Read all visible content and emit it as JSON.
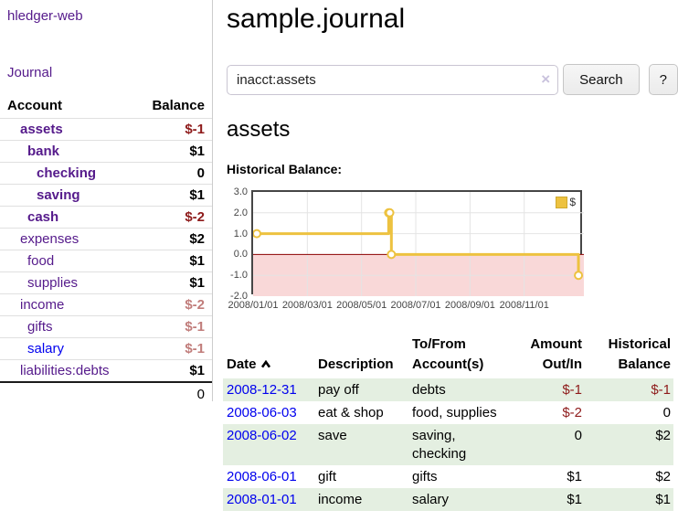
{
  "app": {
    "title": "hledger-web"
  },
  "sidebar": {
    "journal_label": "Journal",
    "headers": {
      "account": "Account",
      "balance": "Balance"
    },
    "accounts": [
      {
        "name": "assets",
        "balance": "$-1"
      },
      {
        "name": "bank",
        "balance": "$1"
      },
      {
        "name": "checking",
        "balance": "0"
      },
      {
        "name": "saving",
        "balance": "$1"
      },
      {
        "name": "cash",
        "balance": "$-2"
      },
      {
        "name": "expenses",
        "balance": "$2"
      },
      {
        "name": "food",
        "balance": "$1"
      },
      {
        "name": "supplies",
        "balance": "$1"
      },
      {
        "name": "income",
        "balance": "$-2"
      },
      {
        "name": "gifts",
        "balance": "$-1"
      },
      {
        "name": "salary",
        "balance": "$-1"
      },
      {
        "name": "liabilities:debts",
        "balance": "$1"
      }
    ],
    "total": "0"
  },
  "main": {
    "title": "sample.journal",
    "search": {
      "value": "inacct:assets",
      "clear_icon": "×",
      "button_label": "Search",
      "help_label": "?"
    },
    "account_heading": "assets",
    "chart_label": "Historical Balance:"
  },
  "chart_data": {
    "type": "line",
    "step": true,
    "title": "Historical Balance:",
    "legend": [
      {
        "label": "$",
        "color": "#edc240"
      }
    ],
    "series_color": "#edc240",
    "negative_region_color": "#f9d8d8",
    "zero_line_color": "#8b0000",
    "grid_color": "#e4e4e4",
    "ylim": [
      -2,
      3
    ],
    "y_ticks": [
      "3.0",
      "2.0",
      "1.0",
      "0.0",
      "-1.0",
      "-2.0"
    ],
    "x_range_months": [
      0,
      12.2
    ],
    "x_tick_months": [
      0,
      2,
      4,
      6,
      8,
      10
    ],
    "x_tick_labels": [
      "2008/01/01",
      "2008/03/01",
      "2008/05/01",
      "2008/07/01",
      "2008/09/01",
      "2008/11/01"
    ],
    "points": [
      {
        "date": "2008/01/01",
        "x": 0,
        "y": 1
      },
      {
        "date": "2008/06/01",
        "x": 5,
        "y": 2
      },
      {
        "date": "2008/06/02",
        "x": 5.04,
        "y": 2
      },
      {
        "date": "2008/06/03",
        "x": 5.1,
        "y": 0
      },
      {
        "date": "2008/12/31",
        "x": 12,
        "y": -1
      }
    ]
  },
  "register": {
    "headers": {
      "date": "Date",
      "description": "Description",
      "account": "To/From\nAccount(s)",
      "amount": "Amount\nOut/In",
      "balance": "Historical\nBalance"
    },
    "rows": [
      {
        "date": "2008-12-31",
        "description": "pay off",
        "account": "debts",
        "amount": "$-1",
        "balance": "$-1"
      },
      {
        "date": "2008-06-03",
        "description": "eat & shop",
        "account": "food, supplies",
        "amount": "$-2",
        "balance": "0"
      },
      {
        "date": "2008-06-02",
        "description": "save",
        "account": "saving,\nchecking",
        "amount": "0",
        "balance": "$2"
      },
      {
        "date": "2008-06-01",
        "description": "gift",
        "account": "gifts",
        "amount": "$1",
        "balance": "$2"
      },
      {
        "date": "2008-01-01",
        "description": "income",
        "account": "salary",
        "amount": "$1",
        "balance": "$1"
      }
    ]
  }
}
